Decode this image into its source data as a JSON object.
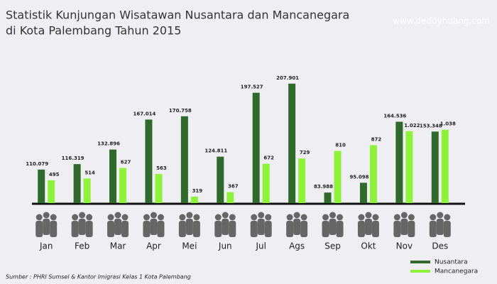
{
  "chart_data": {
    "type": "bar",
    "title": "Statistik Kunjungan Wisatawan Nusantara dan Mancanegara",
    "subtitle": "di Kota Palembang Tahun 2015",
    "watermark": "www.deddyhuang.com",
    "source": "Sumber : PHRI Sumsel & Kantor Imigrasi Kelas 1 Kota Palembang",
    "categories": [
      "Jan",
      "Feb",
      "Mar",
      "Apr",
      "Mei",
      "Jun",
      "Jul",
      "Ags",
      "Sep",
      "Okt",
      "Nov",
      "Des"
    ],
    "series": [
      {
        "name": "Nusantara",
        "color": "#2f6a2c",
        "values": [
          110079,
          116319,
          132896,
          167014,
          170758,
          124811,
          197527,
          207901,
          83988,
          95098,
          164536,
          153348
        ],
        "value_labels": [
          "110.079",
          "116.319",
          "132.896",
          "167.014",
          "170.758",
          "124.811",
          "197.527",
          "207.901",
          "83.988",
          "95.098",
          "164.536",
          "153.348"
        ]
      },
      {
        "name": "Mancanegara",
        "color": "#8ef23a",
        "axis": "y2",
        "values": [
          495,
          514,
          627,
          563,
          319,
          367,
          672,
          729,
          810,
          872,
          1022,
          1038
        ],
        "value_labels": [
          "495",
          "514",
          "627",
          "563",
          "319",
          "367",
          "672",
          "729",
          "810",
          "872",
          "1.022",
          "1.038"
        ]
      }
    ],
    "ylim": [
      72000,
      215000
    ],
    "y2lim": [
      250,
      1600
    ],
    "grid": false
  }
}
